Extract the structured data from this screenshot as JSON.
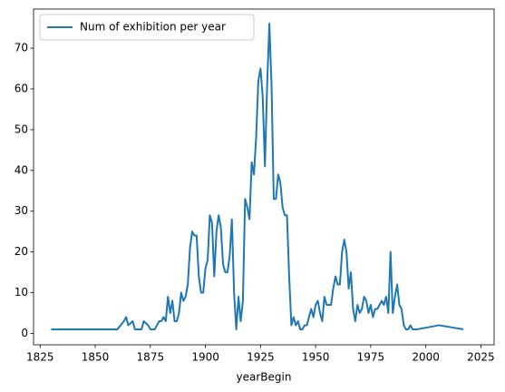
{
  "chart_data": {
    "type": "line",
    "xlabel": "yearBegin",
    "x": [
      1830,
      1860,
      1863,
      1864,
      1865,
      1867,
      1868,
      1871,
      1872,
      1874,
      1875,
      1877,
      1879,
      1880,
      1881,
      1882,
      1883,
      1884,
      1885,
      1886,
      1887,
      1888,
      1889,
      1890,
      1891,
      1892,
      1893,
      1894,
      1895,
      1896,
      1897,
      1898,
      1899,
      1900,
      1901,
      1902,
      1903,
      1904,
      1905,
      1906,
      1907,
      1908,
      1909,
      1910,
      1911,
      1912,
      1913,
      1914,
      1915,
      1916,
      1917,
      1918,
      1919,
      1920,
      1921,
      1922,
      1923,
      1924,
      1925,
      1926,
      1927,
      1928,
      1929,
      1930,
      1931,
      1932,
      1933,
      1934,
      1935,
      1936,
      1937,
      1938,
      1939,
      1940,
      1941,
      1942,
      1943,
      1944,
      1945,
      1946,
      1947,
      1948,
      1949,
      1950,
      1951,
      1952,
      1953,
      1954,
      1955,
      1956,
      1957,
      1958,
      1959,
      1960,
      1961,
      1962,
      1963,
      1964,
      1965,
      1966,
      1967,
      1968,
      1969,
      1970,
      1971,
      1972,
      1973,
      1974,
      1975,
      1976,
      1977,
      1978,
      1979,
      1980,
      1981,
      1982,
      1983,
      1984,
      1985,
      1986,
      1987,
      1988,
      1989,
      1990,
      1991,
      1992,
      1993,
      1994,
      1996,
      2006,
      2017
    ],
    "series": [
      {
        "name": "Num of exhibition per year",
        "color": "#1f77b4",
        "values": [
          1,
          1,
          3,
          4,
          2,
          3,
          1,
          1,
          3,
          2,
          1,
          1,
          3,
          3,
          4,
          3,
          9,
          5,
          8,
          3,
          3,
          5,
          10,
          8,
          9,
          12,
          21,
          25,
          24,
          24,
          14,
          10,
          10,
          16,
          18,
          29,
          27,
          14,
          25,
          29,
          26,
          17,
          15,
          15,
          19,
          28,
          10,
          1,
          9,
          3,
          8,
          33,
          31,
          28,
          42,
          39,
          48,
          62,
          65,
          58,
          41,
          61,
          76,
          61,
          33,
          33,
          39,
          37,
          31,
          29,
          29,
          14,
          2,
          4,
          2,
          3,
          1,
          1,
          2,
          2,
          4,
          6,
          4,
          7,
          8,
          5,
          3,
          9,
          7,
          7,
          7,
          11,
          14,
          12,
          12,
          20,
          23,
          20,
          11,
          15,
          6,
          3,
          7,
          5,
          6,
          9,
          8,
          5,
          7,
          4,
          6,
          6,
          7,
          8,
          7,
          9,
          5,
          20,
          5,
          9,
          12,
          7,
          6,
          2,
          1,
          1,
          2,
          1,
          1,
          2,
          1
        ]
      }
    ],
    "xlim": [
      1822,
      2031
    ],
    "xticks": [
      1825,
      1850,
      1875,
      1900,
      1925,
      1950,
      1975,
      2000,
      2025
    ],
    "ylim": [
      -2.8,
      79.6
    ],
    "yticks": [
      0,
      10,
      20,
      30,
      40,
      50,
      60,
      70
    ],
    "legend": "upper left"
  }
}
